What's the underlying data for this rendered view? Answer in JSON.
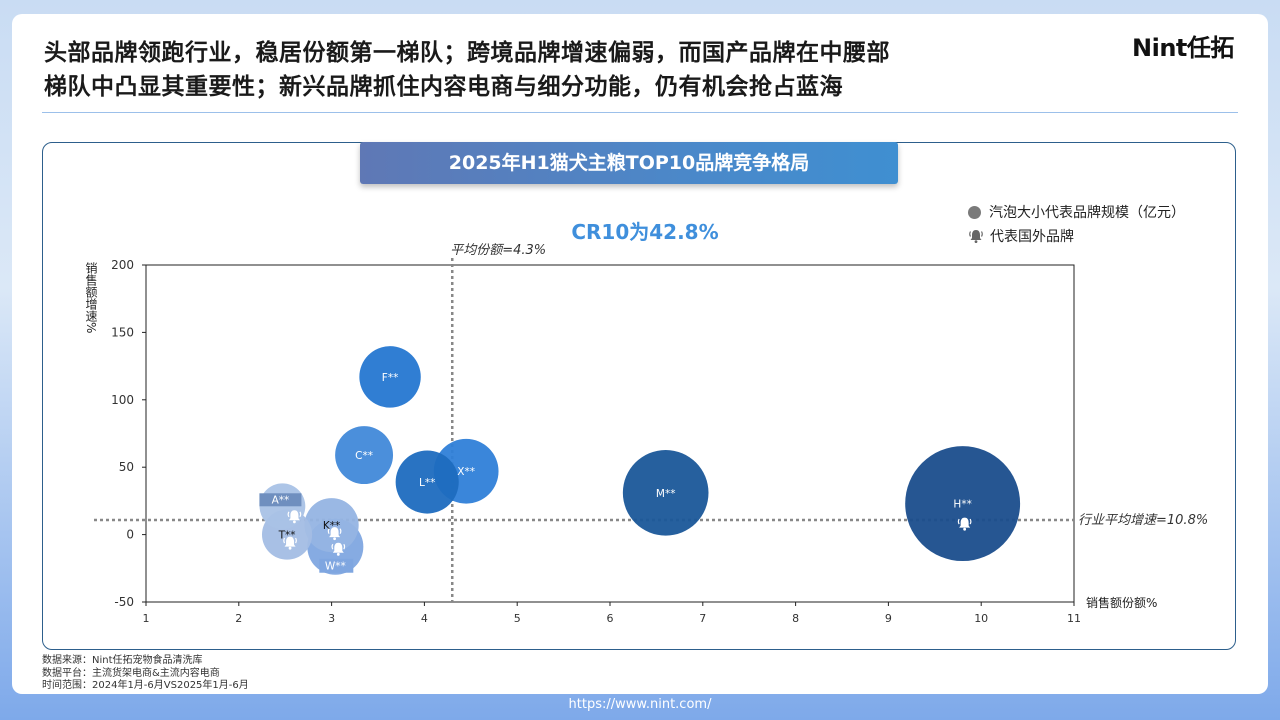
{
  "headline": {
    "line1": "头部品牌领跑行业，稳居份额第一梯队；跨境品牌增速偏弱，而国产品牌在中腰部",
    "line2": "梯队中凸显其重要性；新兴品牌抓住内容电商与细分功能，仍有机会抢占蓝海"
  },
  "logo": "Nint任拓",
  "chart_title": "2025年H1猫犬主粮TOP10品牌竞争格局",
  "cr10": "CR10为42.8%",
  "legend": {
    "bubble": "汽泡大小代表品牌规模（亿元）",
    "foreign": "代表国外品牌",
    "bubble_icon": "circle-icon",
    "foreign_icon": "bell-icon"
  },
  "chart_data": {
    "type": "scatter",
    "xlabel": "销售额份额%",
    "ylabel": "销售额增速%",
    "xlim": [
      1,
      11
    ],
    "ylim": [
      -50,
      200
    ],
    "xticks": [
      1,
      2,
      3,
      4,
      5,
      6,
      7,
      8,
      9,
      10,
      11
    ],
    "yticks": [
      -50,
      0,
      50,
      100,
      150,
      200
    ],
    "ref_lines": {
      "x": {
        "value": 4.3,
        "label": "平均份额=4.3%"
      },
      "y": {
        "value": 10.8,
        "label": "行业平均增速=10.8%"
      }
    },
    "points": [
      {
        "name": "H**",
        "x": 9.8,
        "y": 23,
        "size": 6.3,
        "foreign": true,
        "color": "#1a4d8c"
      },
      {
        "name": "M**",
        "x": 6.6,
        "y": 31,
        "size": 3.5,
        "foreign": false,
        "color": "#1a5799"
      },
      {
        "name": "X**",
        "x": 4.45,
        "y": 47,
        "size": 2.0,
        "foreign": false,
        "color": "#2f7fd8"
      },
      {
        "name": "L**",
        "x": 4.03,
        "y": 39,
        "size": 1.9,
        "foreign": false,
        "color": "#1e6bbf"
      },
      {
        "name": "F**",
        "x": 3.63,
        "y": 117,
        "size": 1.8,
        "foreign": false,
        "color": "#2577d1"
      },
      {
        "name": "C**",
        "x": 3.35,
        "y": 59,
        "size": 1.6,
        "foreign": false,
        "color": "#4189d9"
      },
      {
        "name": "A**",
        "x": 2.47,
        "y": 21,
        "size": 1.0,
        "foreign": true,
        "color": "#a9c2e6"
      },
      {
        "name": "T**",
        "x": 2.52,
        "y": 0,
        "size": 1.2,
        "foreign": true,
        "color": "#a3bde4"
      },
      {
        "name": "K**",
        "x": 3.0,
        "y": 7,
        "size": 1.4,
        "foreign": true,
        "color": "#95b4e3"
      },
      {
        "name": "W**",
        "x": 3.04,
        "y": -9,
        "size": 1.5,
        "foreign": true,
        "color": "#7fa6e0"
      }
    ]
  },
  "footer": {
    "source": "数据来源：Nint任拓宠物食品清洗库",
    "platform": "数据平台：主流货架电商&主流内容电商",
    "period": "时间范围：2024年1月-6月VS2025年1月-6月"
  },
  "url": "https://www.nint.com/"
}
